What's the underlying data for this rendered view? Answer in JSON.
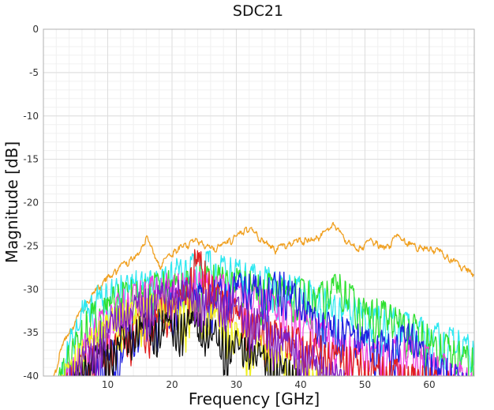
{
  "chart_data": {
    "type": "line",
    "title": "SDC21",
    "xlabel": "Frequency [GHz]",
    "ylabel": "Magnitude [dB]",
    "xlim": [
      0,
      67
    ],
    "ylim": [
      -40,
      0
    ],
    "xticks": [
      10,
      20,
      30,
      40,
      50,
      60
    ],
    "yticks": [
      0,
      -5,
      -10,
      -15,
      -20,
      -25,
      -30,
      -35,
      -40
    ],
    "grid": true,
    "legend": "none",
    "series": [
      {
        "name": "orange",
        "color": "#F0A020",
        "x": [
          1.5,
          3,
          6,
          9,
          12,
          15,
          16,
          18,
          20,
          22,
          24,
          26,
          28,
          30,
          32,
          34,
          36,
          38,
          40,
          42,
          44,
          45,
          47,
          49,
          51,
          53,
          55,
          57,
          59,
          61,
          63,
          65,
          67
        ],
        "y": [
          -40,
          -36,
          -32,
          -29,
          -27,
          -25.5,
          -23.5,
          -27,
          -25.5,
          -24.5,
          -24,
          -25,
          -24.5,
          -23.5,
          -22.5,
          -24,
          -25,
          -24.5,
          -24,
          -24,
          -23,
          -22,
          -24,
          -25,
          -24,
          -25,
          -23.5,
          -24.5,
          -25,
          -25,
          -26,
          -27,
          -28
        ]
      },
      {
        "name": "cyan",
        "color": "#30E8F0",
        "x": [
          2,
          4,
          6,
          8,
          10,
          14,
          18,
          22,
          26,
          30,
          34,
          38,
          42,
          46,
          50,
          54,
          58,
          62,
          66,
          67
        ],
        "y": [
          -40,
          -35,
          -31,
          -29.5,
          -28.5,
          -27.5,
          -27,
          -26,
          -25.5,
          -26.5,
          -27,
          -28,
          -29,
          -30,
          -31,
          -32,
          -33,
          -34,
          -35,
          -36
        ]
      },
      {
        "name": "green",
        "color": "#30E030",
        "x": [
          2,
          4,
          7,
          10,
          14,
          18,
          22,
          26,
          30,
          34,
          38,
          42,
          46,
          50,
          54,
          58,
          62,
          66,
          67
        ],
        "y": [
          -40,
          -36,
          -32,
          -30,
          -28.5,
          -28,
          -27.5,
          -27,
          -27.5,
          -28,
          -28.5,
          -29,
          -28,
          -30.5,
          -31.5,
          -33,
          -35,
          -36,
          -37
        ]
      },
      {
        "name": "magenta",
        "color": "#F040E0",
        "x": [
          2.5,
          5,
          8,
          12,
          16,
          20,
          24,
          28,
          32,
          36,
          40,
          44,
          48,
          52,
          56,
          60,
          64,
          67
        ],
        "y": [
          -40,
          -37,
          -33,
          -30,
          -28.5,
          -28,
          -27.5,
          -28,
          -29,
          -30,
          -32,
          -33.5,
          -35,
          -36,
          -35,
          -36.5,
          -38,
          -39
        ]
      },
      {
        "name": "blue",
        "color": "#2020E0",
        "x": [
          5,
          10,
          15,
          20,
          25,
          30,
          35,
          37,
          40,
          43,
          46,
          50,
          54,
          57,
          60,
          63,
          67
        ],
        "y": [
          -40,
          -36,
          -33,
          -30,
          -29,
          -28,
          -28.5,
          -27.5,
          -30,
          -32,
          -33,
          -34,
          -35,
          -33.5,
          -37,
          -38,
          -40
        ]
      },
      {
        "name": "red",
        "color": "#E02020",
        "x": [
          3,
          6,
          10,
          14,
          18,
          21,
          24,
          27,
          30,
          34,
          38,
          42,
          46,
          50,
          55,
          60,
          67
        ],
        "y": [
          -40,
          -37,
          -35,
          -33,
          -31,
          -30,
          -24.5,
          -29,
          -31,
          -33,
          -34,
          -35,
          -36,
          -37,
          -38,
          -39,
          -40
        ]
      },
      {
        "name": "yellow",
        "color": "#F0F020",
        "x": [
          2,
          5,
          9,
          13,
          17,
          21,
          25,
          29,
          33,
          37,
          41,
          45
        ],
        "y": [
          -40,
          -36,
          -33,
          -31,
          -30,
          -30.5,
          -31,
          -33,
          -35,
          -36.5,
          -38,
          -40
        ]
      },
      {
        "name": "black",
        "color": "#101010",
        "x": [
          4,
          8,
          12,
          16,
          20,
          24,
          28,
          32,
          36,
          40
        ],
        "y": [
          -40,
          -36,
          -34,
          -32.5,
          -32,
          -32.5,
          -34,
          -35.5,
          -37,
          -39
        ]
      },
      {
        "name": "violet",
        "color": "#8020C0",
        "x": [
          3,
          7,
          11,
          15,
          19,
          23,
          27,
          31,
          35,
          39,
          43,
          47
        ],
        "y": [
          -40,
          -35,
          -32,
          -30,
          -29,
          -28.5,
          -29.5,
          -31,
          -33,
          -35,
          -37,
          -39
        ]
      }
    ]
  }
}
